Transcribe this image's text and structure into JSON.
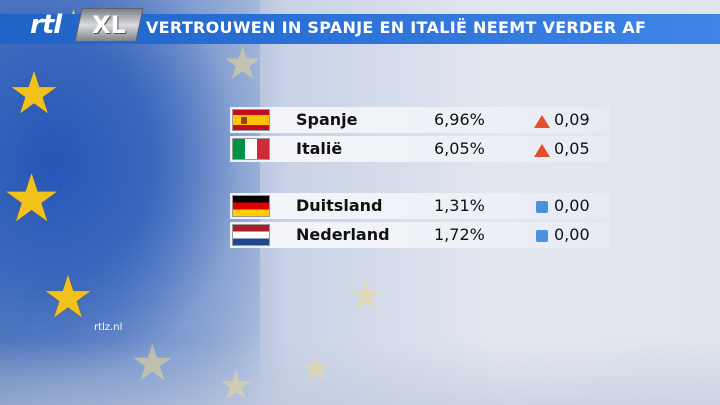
{
  "header": {
    "title": "VERTROUWEN IN SPANJE EN ITALIË NEEMT VERDER AF",
    "logo_left": "rtl",
    "logo_right": "XL"
  },
  "watermark": "rtlz.nl",
  "colors": {
    "header_bar": "#2a70d6",
    "up_indicator": "#e0502e",
    "flat_indicator": "#4a8fe0"
  },
  "rows": [
    {
      "flag": "spain-flag",
      "country": "Spanje",
      "rate": "6,96%",
      "indicator": "up",
      "change": "0,09"
    },
    {
      "flag": "italy-flag",
      "country": "Italië",
      "rate": "6,05%",
      "indicator": "up",
      "change": "0,05"
    },
    {
      "flag": "germany-flag",
      "country": "Duitsland",
      "rate": "1,31%",
      "indicator": "flat",
      "change": "0,00"
    },
    {
      "flag": "netherlands-flag",
      "country": "Nederland",
      "rate": "1,72%",
      "indicator": "flat",
      "change": "0,00"
    }
  ]
}
